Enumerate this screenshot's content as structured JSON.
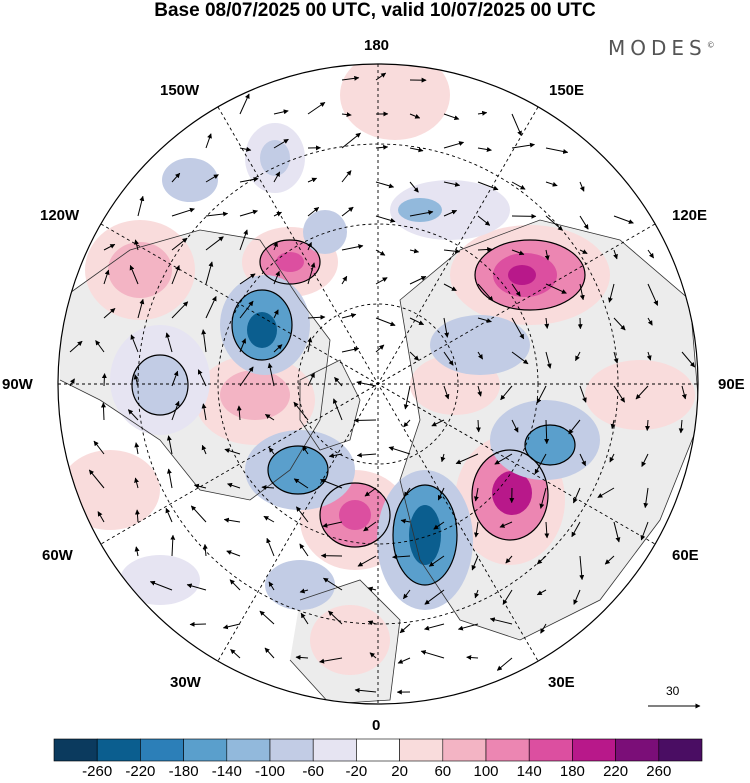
{
  "header": {
    "title": "Base 08/07/2025 00 UTC, valid 10/07/2025 00 UTC",
    "brand": "MODES",
    "brand_mark": "©"
  },
  "map": {
    "projection": "north-polar-stereographic",
    "longitude_labels": {
      "top": "180",
      "bottom": "0",
      "left": "90W",
      "right": "90E",
      "upper_left_outer": "150W",
      "upper_left": "120W",
      "upper_right_outer": "150E",
      "upper_right": "120E",
      "lower_left": "60W",
      "lower_left_outer": "30W",
      "lower_right": "60E",
      "lower_right_outer": "30E"
    },
    "reference_vector": "30",
    "field": "geopotential height anomaly with wind vectors",
    "colors": {
      "land_shade": "#ececec",
      "coastline": "#333333",
      "graticule": "#000000"
    }
  },
  "colorbar": {
    "labels": [
      "-260",
      "-220",
      "-180",
      "-140",
      "-100",
      "-60",
      "-20",
      "20",
      "60",
      "100",
      "140",
      "180",
      "220",
      "260"
    ],
    "colors": [
      "#0b3a5e",
      "#0b5e8f",
      "#2c7fb8",
      "#5a9fcc",
      "#92b9dc",
      "#c2cce5",
      "#e6e4f2",
      "#ffffff",
      "#f9dcdc",
      "#f3b4c4",
      "#ec86b2",
      "#dc4fa0",
      "#b8188a",
      "#7b0e78",
      "#4a0d63"
    ]
  }
}
